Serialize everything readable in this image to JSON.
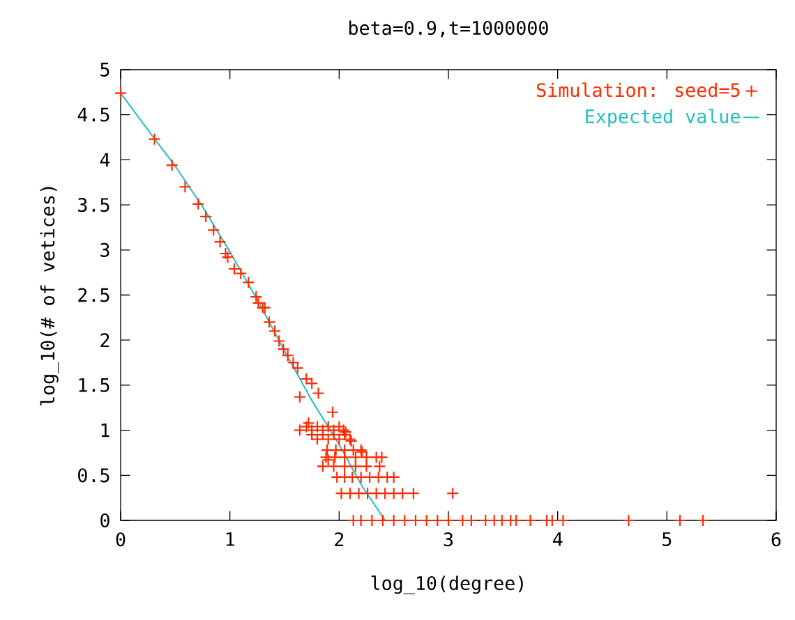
{
  "chart_data": {
    "type": "scatter",
    "title": "beta=0.9,t=1000000",
    "xlabel": "log_10(degree)",
    "ylabel": "log_10(# of vetices)",
    "xlim": [
      0,
      6
    ],
    "ylim": [
      0,
      5
    ],
    "xticks": [
      0,
      1,
      2,
      3,
      4,
      5,
      6
    ],
    "yticks": [
      0,
      0.5,
      1,
      1.5,
      2,
      2.5,
      3,
      3.5,
      4,
      4.5,
      5
    ],
    "grid": false,
    "legend": "top right",
    "marker": "cross",
    "series": [
      {
        "name": "Simulation: seed=5",
        "color": "#ff2a00",
        "x": [
          0,
          0.31,
          0.47,
          0.59,
          0.71,
          0.78,
          0.85,
          0.91,
          0.96,
          0.98,
          1.04,
          1.1,
          1.17,
          1.24,
          1.26,
          1.3,
          1.32,
          1.36,
          1.41,
          1.45,
          1.49,
          1.53,
          1.58,
          1.62,
          1.7,
          1.75,
          1.64,
          1.81,
          1.94,
          1.72,
          2.06,
          2.11,
          2.21,
          2.34,
          1.9,
          1.64,
          1.75,
          1.85,
          1.95,
          2.04,
          1.7,
          1.8,
          1.9,
          2.0,
          1.75,
          1.85,
          1.95,
          2.05,
          1.8,
          1.9,
          2.0,
          2.1,
          1.89,
          1.97,
          2.05,
          2.13,
          2.2,
          1.88,
          1.96,
          2.05,
          2.15,
          2.25,
          2.39,
          1.85,
          1.95,
          2.05,
          2.15,
          2.25,
          2.37,
          1.98,
          2.05,
          2.12,
          2.2,
          2.28,
          2.36,
          2.44,
          2.5,
          2.02,
          2.1,
          2.18,
          2.26,
          2.34,
          2.42,
          2.5,
          2.58,
          2.68,
          3.04,
          2.13,
          2.2,
          2.3,
          2.4,
          2.5,
          2.6,
          2.7,
          2.8,
          2.9,
          3.0,
          3.13,
          3.21,
          3.34,
          3.42,
          3.49,
          3.57,
          3.62,
          3.75,
          3.9,
          3.95,
          4.05,
          4.65,
          5.12,
          5.33
        ],
        "values": [
          4.74,
          4.23,
          3.94,
          3.7,
          3.51,
          3.37,
          3.22,
          3.09,
          2.96,
          2.92,
          2.79,
          2.74,
          2.64,
          2.48,
          2.41,
          2.36,
          2.36,
          2.2,
          2.1,
          1.99,
          1.9,
          1.83,
          1.75,
          1.69,
          1.57,
          1.52,
          1.37,
          1.41,
          1.2,
          1.08,
          0.98,
          0.88,
          0.76,
          0.7,
          0.67,
          1.0,
          1.0,
          1.0,
          1.0,
          1.0,
          1.04,
          1.04,
          1.04,
          1.04,
          0.95,
          0.95,
          0.95,
          0.95,
          0.9,
          0.9,
          0.9,
          0.9,
          0.78,
          0.78,
          0.78,
          0.78,
          0.78,
          0.7,
          0.7,
          0.7,
          0.7,
          0.7,
          0.7,
          0.6,
          0.6,
          0.6,
          0.6,
          0.6,
          0.6,
          0.48,
          0.48,
          0.48,
          0.48,
          0.48,
          0.48,
          0.48,
          0.48,
          0.3,
          0.3,
          0.3,
          0.3,
          0.3,
          0.3,
          0.3,
          0.3,
          0.3,
          0.3,
          0,
          0,
          0,
          0,
          0,
          0,
          0,
          0,
          0,
          0,
          0,
          0,
          0,
          0,
          0,
          0,
          0,
          0,
          0,
          0,
          0,
          0,
          0,
          0
        ]
      },
      {
        "name": "Expected value",
        "type": "line",
        "color": "#20c0c0",
        "marker": "none",
        "x": [
          0,
          0.3,
          0.5,
          0.75,
          1,
          1.25,
          1.5,
          1.75,
          2,
          2.2,
          2.42
        ],
        "values": [
          4.74,
          4.25,
          3.93,
          3.48,
          2.98,
          2.45,
          1.88,
          1.33,
          0.84,
          0.4,
          0
        ]
      }
    ]
  }
}
